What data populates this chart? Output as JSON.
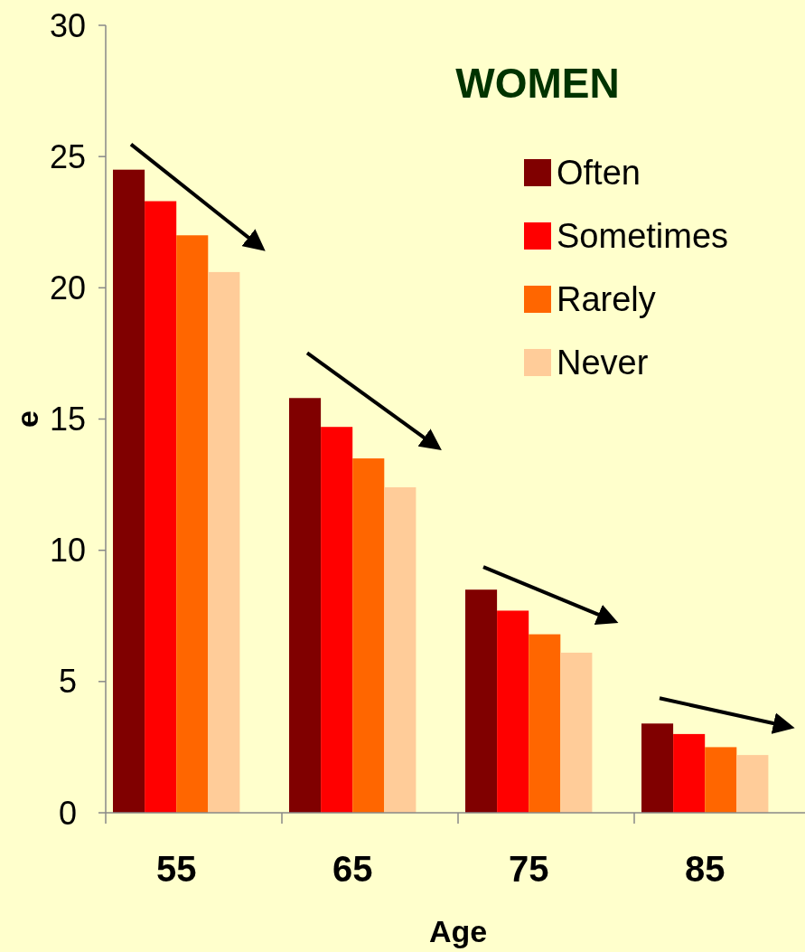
{
  "chart_data": {
    "type": "bar",
    "title": "WOMEN",
    "xlabel": "Age",
    "ylabel": "e",
    "categories": [
      "55",
      "65",
      "75",
      "85"
    ],
    "series": [
      {
        "name": "Often",
        "color": "#800000",
        "values": [
          24.5,
          15.8,
          8.5,
          3.4
        ]
      },
      {
        "name": "Sometimes",
        "color": "#ff0000",
        "values": [
          23.3,
          14.7,
          7.7,
          3.0
        ]
      },
      {
        "name": "Rarely",
        "color": "#ff6600",
        "values": [
          22.0,
          13.5,
          6.8,
          2.5
        ]
      },
      {
        "name": "Never",
        "color": "#ffcc99",
        "values": [
          20.6,
          12.4,
          6.1,
          2.2
        ]
      }
    ],
    "ylim": [
      0,
      30
    ],
    "yticks": [
      0,
      5,
      10,
      15,
      20,
      25,
      30
    ],
    "grid": false,
    "legend": "top right"
  }
}
